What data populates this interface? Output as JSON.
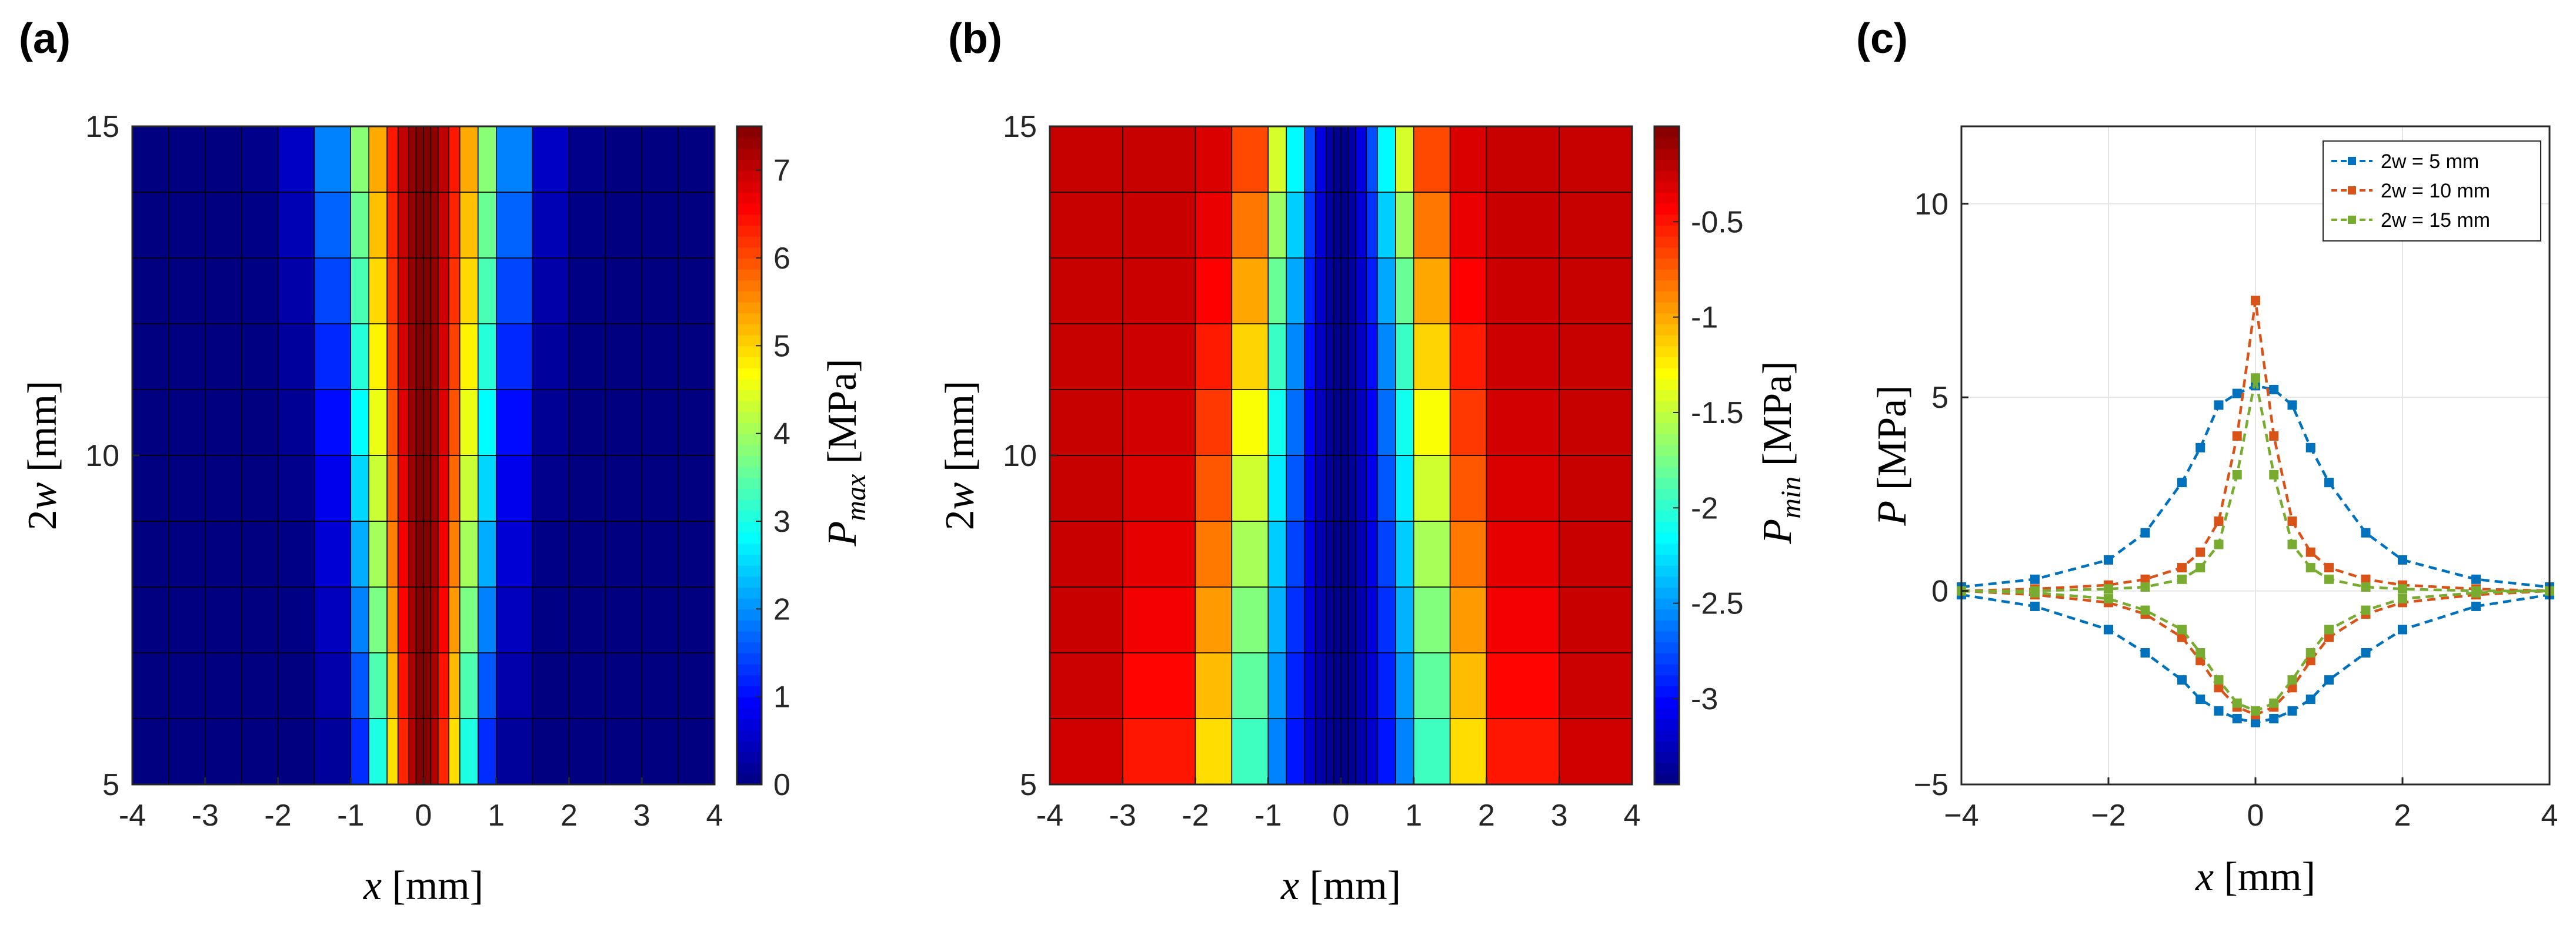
{
  "panels": {
    "a": {
      "label": "(a)",
      "xlabel": "x [mm]",
      "ylabel": "2w [mm]",
      "colorbar_label": "P_max [MPa]",
      "xticks": [
        "-4",
        "-3",
        "-2",
        "-1",
        "0",
        "1",
        "2",
        "3",
        "4"
      ],
      "yticks": [
        "5",
        "10",
        "15"
      ],
      "cticks": [
        "0",
        "1",
        "2",
        "3",
        "4",
        "5",
        "6",
        "7"
      ]
    },
    "b": {
      "label": "(b)",
      "xlabel": "x [mm]",
      "ylabel": "2w [mm]",
      "colorbar_label": "P_min [MPa]",
      "xticks": [
        "-4",
        "-3",
        "-2",
        "-1",
        "0",
        "1",
        "2",
        "3",
        "4"
      ],
      "yticks": [
        "5",
        "10",
        "15"
      ],
      "cticks": [
        "-0.5",
        "-1",
        "-1.5",
        "-2",
        "-2.5",
        "-3"
      ]
    },
    "c": {
      "label": "(c)",
      "xlabel": "x [mm]",
      "ylabel": "P [MPa]",
      "xticks": [
        "-4",
        "-2",
        "0",
        "2",
        "4"
      ],
      "yticks": [
        "-5",
        "0",
        "5",
        "10"
      ],
      "legend": [
        "2w = 5 mm",
        "2w = 10 mm",
        "2w = 15 mm"
      ]
    }
  },
  "chart_data": [
    {
      "type": "heatmap",
      "xlabel": "x [mm]",
      "ylabel": "2w [mm]",
      "colorbar": "P_max [MPa]",
      "xlim": [
        -4,
        4
      ],
      "ylim": [
        5,
        15
      ],
      "clim": [
        0,
        7.5
      ],
      "colormap": "jet",
      "x": [
        -4,
        -3.5,
        -3,
        -2.5,
        -2,
        -1.5,
        -1,
        -0.75,
        -0.5,
        -0.35,
        -0.2,
        -0.1,
        0,
        0.1,
        0.2,
        0.35,
        0.5,
        0.75,
        1,
        1.5,
        2,
        2.5,
        3,
        3.5,
        4
      ],
      "y": [
        5,
        6,
        7,
        8,
        9,
        10,
        11,
        12,
        13,
        14,
        15
      ],
      "description_of_values": "peak near x=0 (~7.5 MPa); spread narrows as 2w increases"
    },
    {
      "type": "heatmap",
      "xlabel": "x [mm]",
      "ylabel": "2w [mm]",
      "colorbar": "P_min [MPa]",
      "xlim": [
        -4,
        4
      ],
      "ylim": [
        5,
        15
      ],
      "clim": [
        -3.45,
        0
      ],
      "colormap": "jet",
      "x": [
        -4,
        -3,
        -2,
        -1.5,
        -1,
        -0.75,
        -0.5,
        -0.35,
        -0.2,
        -0.1,
        0,
        0.1,
        0.2,
        0.35,
        0.5,
        0.75,
        1,
        1.5,
        2,
        3,
        4
      ],
      "y": [
        5,
        6,
        7,
        8,
        9,
        10,
        11,
        12,
        13,
        14,
        15
      ]
    },
    {
      "type": "line",
      "xlabel": "x [mm]",
      "ylabel": "P [MPa]",
      "xlim": [
        -4,
        4
      ],
      "ylim": [
        -5,
        12
      ],
      "grid": true,
      "legend_position": "top-right",
      "series": [
        {
          "name": "2w = 5 mm",
          "color": "#0072BD",
          "x": [
            -4,
            -3,
            -2,
            -1.5,
            -1,
            -0.75,
            -0.5,
            -0.25,
            0,
            0.25,
            0.5,
            0.75,
            1,
            1.5,
            2,
            3,
            4
          ],
          "upper": [
            0.1,
            0.3,
            0.8,
            1.5,
            2.8,
            3.7,
            4.8,
            5.1,
            5.3,
            5.2,
            4.8,
            3.7,
            2.8,
            1.5,
            0.8,
            0.3,
            0.1
          ],
          "lower": [
            -0.1,
            -0.4,
            -1.0,
            -1.6,
            -2.3,
            -2.8,
            -3.1,
            -3.3,
            -3.4,
            -3.3,
            -3.1,
            -2.8,
            -2.3,
            -1.6,
            -1.0,
            -0.4,
            -0.1
          ]
        },
        {
          "name": "2w = 10 mm",
          "color": "#D95319",
          "x": [
            -4,
            -3,
            -2,
            -1.5,
            -1,
            -0.75,
            -0.5,
            -0.25,
            0,
            0.25,
            0.5,
            0.75,
            1,
            1.5,
            2,
            3,
            4
          ],
          "upper": [
            0.0,
            0.05,
            0.15,
            0.3,
            0.6,
            1.0,
            1.8,
            4.0,
            7.5,
            4.0,
            1.8,
            1.0,
            0.6,
            0.3,
            0.15,
            0.05,
            0.0
          ],
          "lower": [
            0.0,
            -0.1,
            -0.3,
            -0.6,
            -1.2,
            -1.8,
            -2.5,
            -3.0,
            -3.2,
            -3.0,
            -2.5,
            -1.8,
            -1.2,
            -0.6,
            -0.3,
            -0.1,
            0.0
          ]
        },
        {
          "name": "2w = 15 mm",
          "color": "#77AC30",
          "x": [
            -4,
            -3,
            -2,
            -1.5,
            -1,
            -0.75,
            -0.5,
            -0.25,
            0,
            0.25,
            0.5,
            0.75,
            1,
            1.5,
            2,
            3,
            4
          ],
          "upper": [
            0.0,
            0.0,
            0.05,
            0.1,
            0.3,
            0.6,
            1.2,
            3.0,
            5.5,
            3.0,
            1.2,
            0.6,
            0.3,
            0.1,
            0.05,
            0.0,
            0.0
          ],
          "lower": [
            0.0,
            -0.05,
            -0.2,
            -0.5,
            -1.0,
            -1.6,
            -2.3,
            -2.9,
            -3.1,
            -2.9,
            -2.3,
            -1.6,
            -1.0,
            -0.5,
            -0.2,
            -0.05,
            0.0
          ]
        }
      ]
    }
  ]
}
